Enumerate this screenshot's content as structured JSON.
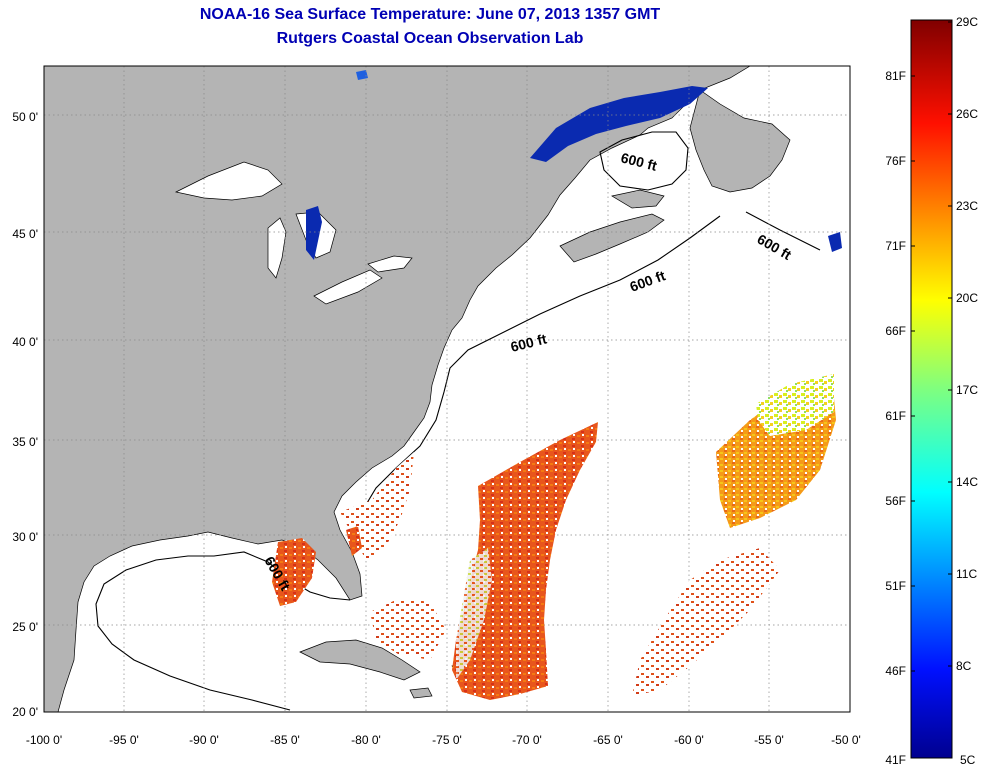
{
  "title": "NOAA-16 Sea Surface Temperature:  June 07, 2013 1357 GMT",
  "subtitle": "Rutgers Coastal Ocean Observation Lab",
  "x_ticks": [
    "-100 0'",
    "-95 0'",
    "-90 0'",
    "-85 0'",
    "-80 0'",
    "-75 0'",
    "-70 0'",
    "-65 0'",
    "-60 0'",
    "-55 0'",
    "-50 0'"
  ],
  "y_ticks": [
    "20 0'",
    "25 0'",
    "30 0'",
    "35 0'",
    "40 0'",
    "45 0'",
    "50 0'"
  ],
  "colorbar": {
    "celsius": [
      "29C",
      "26C",
      "23C",
      "20C",
      "17C",
      "14C",
      "11C",
      "8C",
      "5C"
    ],
    "fahrenheit": [
      "81F",
      "76F",
      "71F",
      "66F",
      "61F",
      "56F",
      "51F",
      "46F",
      "41F"
    ]
  },
  "contour_label": "600 ft",
  "colors": {
    "land": "#b4b4b4",
    "ocean": "#ffffff",
    "title": "#0000b4",
    "cold_water": "#0a2ab0"
  }
}
